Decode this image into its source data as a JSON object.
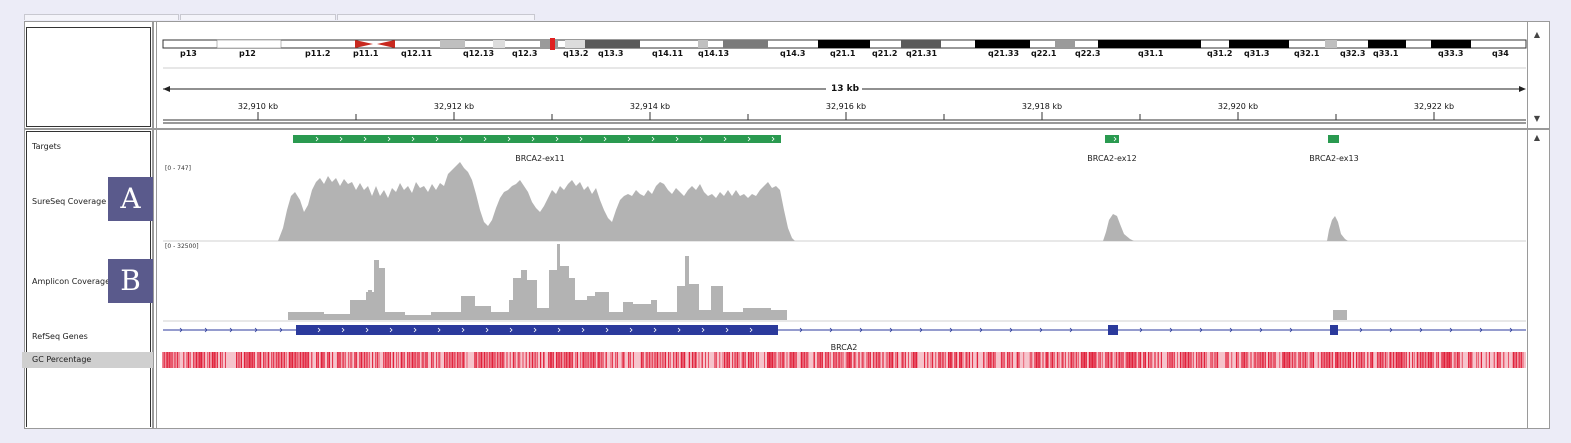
{
  "chromosome": {
    "bands": [
      "p13",
      "p12",
      "p11.2",
      "p11.1",
      "q12.11",
      "q12.13",
      "q12.3",
      "q13.2",
      "q13.3",
      "q14.11",
      "q14.13",
      "q14.3",
      "q21.1",
      "q21.2",
      "q21.31",
      "q21.33",
      "q22.1",
      "q22.3",
      "q31.1",
      "q31.2",
      "q31.3",
      "q32.1",
      "q32.3",
      "q33.1",
      "q33.3",
      "q34"
    ]
  },
  "ruler": {
    "span_label": "13 kb",
    "ticks": [
      "32,910 kb",
      "32,912 kb",
      "32,914 kb",
      "32,916 kb",
      "32,918 kb",
      "32,920 kb",
      "32,922 kb"
    ]
  },
  "tracks": {
    "targets_label": "Targets",
    "sureseq_label": "SureSeq Coverage",
    "amplicon_label": "Amplicon Coverage",
    "refseq_label": "RefSeq Genes",
    "gc_label": "GC Percentage"
  },
  "badges": {
    "a": "A",
    "b": "B"
  },
  "ranges": {
    "sureseq": "[0 - 747]",
    "amplicon": "[0 - 32500]"
  },
  "features": {
    "ex11": "BRCA2-ex11",
    "ex12": "BRCA2-ex12",
    "ex13": "BRCA2-ex13",
    "gene": "BRCA2"
  },
  "colors": {
    "target": "#2a9a50",
    "coverage": "#b3b3b3",
    "gene": "#2b3a9c",
    "gc": "#e0203a",
    "centromere": "#c8281e"
  }
}
